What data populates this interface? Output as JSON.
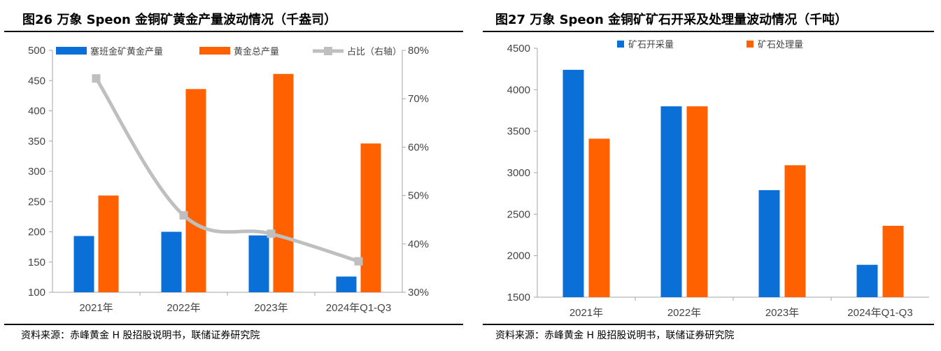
{
  "figures": [
    {
      "title": "图26 万象 Speon 金铜矿黄金产量波动情况（千盎司）",
      "source": "资料来源：赤峰黄金 H 股招股说明书，联储证券研究院"
    },
    {
      "title": "图27 万象 Speon 金铜矿矿石开采及处理量波动情况（千吨）",
      "source": "资料来源：赤峰黄金 H 股招股说明书，联储证券研究院"
    }
  ],
  "colors": {
    "blue": "#0a6fd6",
    "orange": "#ff6100",
    "gray": "#bfbfbf",
    "axis": "#a6a6a6"
  },
  "chart_data": [
    {
      "type": "bar",
      "title": "",
      "categories": [
        "2021年",
        "2022年",
        "2023年",
        "2024年Q1-Q3"
      ],
      "series": [
        {
          "name": "塞班金矿黄金产量",
          "type": "bar",
          "axis": "left",
          "values": [
            193,
            200,
            194,
            126
          ]
        },
        {
          "name": "黄金总产量",
          "type": "bar",
          "axis": "left",
          "values": [
            260,
            436,
            461,
            346
          ]
        },
        {
          "name": "占比（右轴）",
          "type": "line",
          "axis": "right",
          "values": [
            74.2,
            45.9,
            42.1,
            36.4
          ]
        }
      ],
      "ylim": [
        100,
        500
      ],
      "yticks": [
        "500",
        "450",
        "400",
        "350",
        "300",
        "250",
        "200",
        "150",
        "100"
      ],
      "y2lim": [
        30,
        80
      ],
      "y2ticks": [
        "80%",
        "70%",
        "60%",
        "50%",
        "40%",
        "30%"
      ],
      "legend": "top",
      "grid": false
    },
    {
      "type": "bar",
      "title": "",
      "categories": [
        "2021年",
        "2022年",
        "2023年",
        "2024年Q1-Q3"
      ],
      "series": [
        {
          "name": "矿石开采量",
          "values": [
            4240,
            3800,
            2790,
            1890
          ]
        },
        {
          "name": "矿石处理量",
          "values": [
            3410,
            3800,
            3090,
            2360
          ]
        }
      ],
      "ylim": [
        1500,
        4500
      ],
      "yticks": [
        "4500",
        "4000",
        "3500",
        "3000",
        "2500",
        "2000",
        "1500"
      ],
      "legend": "top",
      "grid": false
    }
  ]
}
